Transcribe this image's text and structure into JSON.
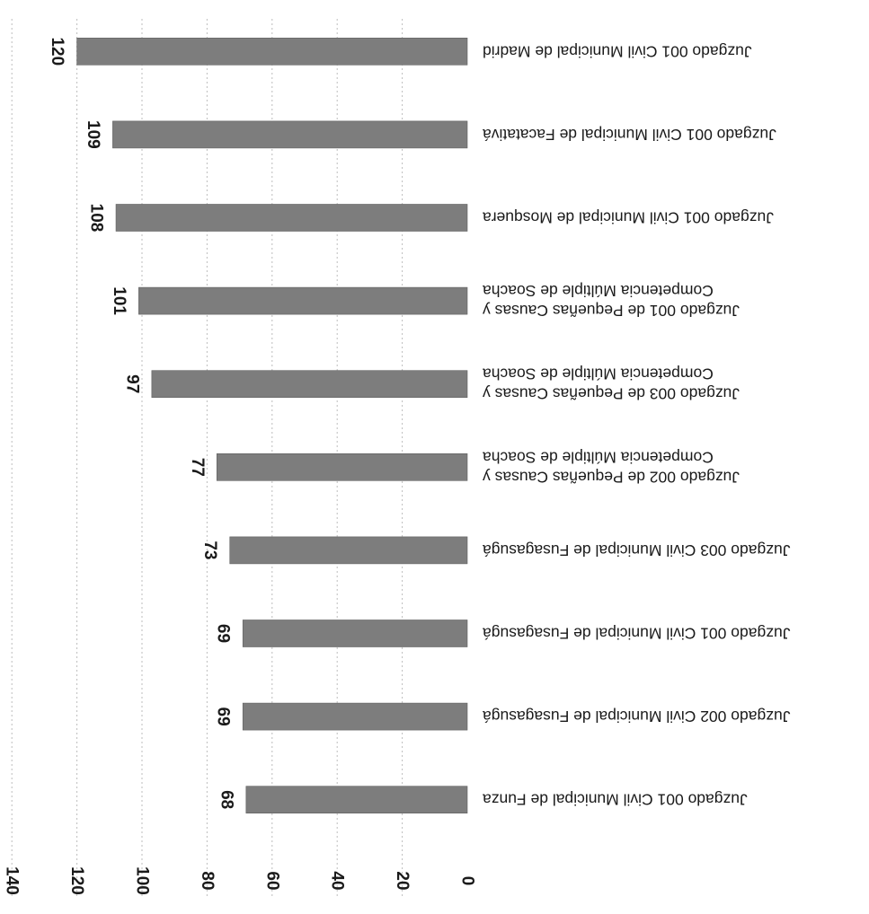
{
  "chart_data": {
    "type": "bar",
    "orientation": "horizontal",
    "rendered_rotated": true,
    "categories": [
      [
        "Juzgado 001 Civil Municipal de Funza"
      ],
      [
        "Juzgado 002 Civil Municipal de Fusagasugá"
      ],
      [
        "Juzgado 001 Civil Municipal de Fusagasugá"
      ],
      [
        "Juzgado 003 Civil Municipal de Fusagasugá"
      ],
      [
        "Juzgado 002 de Pequeñas Causas y",
        "Competencia Múltiple de Soacha"
      ],
      [
        "Juzgado 003 de Pequeñas Causas y",
        "Competencia Múltiple de Soacha"
      ],
      [
        "Juzgado 001 de Pequeñas Causas y",
        "Competencia Múltiple de Soacha"
      ],
      [
        "Juzgado 001 Civil Municipal de Mosquera"
      ],
      [
        "Juzgado 001 Civil Municipal de Facatativá"
      ],
      [
        "Juzgado 001 Civil Municipal de Madrid"
      ]
    ],
    "values": [
      68,
      69,
      69,
      73,
      77,
      97,
      101,
      108,
      109,
      120
    ],
    "data_labels": [
      "68",
      "69",
      "69",
      "73",
      "77",
      "97",
      "101",
      "108",
      "109",
      "120"
    ],
    "axis": {
      "min": 0,
      "max": 140,
      "step": 20,
      "tick_labels": [
        "0",
        "20",
        "40",
        "60",
        "80",
        "100",
        "120",
        "140"
      ]
    },
    "title": "",
    "xlabel": "",
    "ylabel": "",
    "grid": true,
    "legend": "none",
    "colors": {
      "bar": "#7d7d7d",
      "grid": "#bdbdbd",
      "text": "#1a1a1a"
    }
  }
}
